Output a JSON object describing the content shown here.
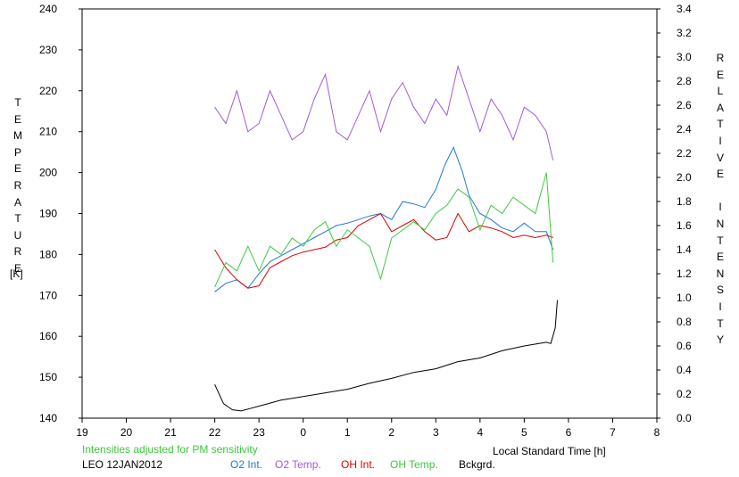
{
  "chart_data": {
    "type": "line",
    "title": "",
    "station": "LEO 12JAN2012",
    "note": "Intensities adjusted for PM sensitivity",
    "xlabel": "Local Standard Time [h]",
    "ylabel_left": "TEMPERATURE",
    "ylabel_left_unit": "[K]",
    "ylabel_right": "RELATIVE INTENSITY",
    "xlim": [
      19,
      32
    ],
    "x_tick_labels": [
      "19",
      "20",
      "21",
      "22",
      "23",
      "0",
      "1",
      "2",
      "3",
      "4",
      "5",
      "6",
      "7",
      "8"
    ],
    "ylim_left": [
      140,
      240
    ],
    "y_left_ticks": [
      "140",
      "150",
      "160",
      "170",
      "180",
      "190",
      "200",
      "210",
      "220",
      "230",
      "240"
    ],
    "ylim_right": [
      0.0,
      3.4
    ],
    "y_right_ticks": [
      "0.0",
      "0.2",
      "0.4",
      "0.6",
      "0.8",
      "1.0",
      "1.2",
      "1.4",
      "1.6",
      "1.8",
      "2.0",
      "2.2",
      "2.4",
      "2.6",
      "2.8",
      "3.0",
      "3.2",
      "3.4"
    ],
    "grid": false,
    "legend_position": "bottom",
    "series": [
      {
        "name": "O2 Int.",
        "axis": "right",
        "color": "#1e78dc",
        "x": [
          22.0,
          22.25,
          22.5,
          22.75,
          23.0,
          23.25,
          23.5,
          23.75,
          24.0,
          24.25,
          24.5,
          24.75,
          25.0,
          25.25,
          25.5,
          25.75,
          26.0,
          26.25,
          26.5,
          26.75,
          27.0,
          27.2,
          27.4,
          27.6,
          27.75,
          28.0,
          28.25,
          28.5,
          28.75,
          29.0,
          29.25,
          29.5,
          29.65
        ],
        "y": [
          1.05,
          1.12,
          1.15,
          1.08,
          1.2,
          1.3,
          1.35,
          1.4,
          1.45,
          1.5,
          1.55,
          1.6,
          1.62,
          1.65,
          1.68,
          1.7,
          1.65,
          1.8,
          1.78,
          1.75,
          1.9,
          2.1,
          2.25,
          2.05,
          1.85,
          1.7,
          1.65,
          1.58,
          1.55,
          1.62,
          1.55,
          1.55,
          1.4
        ]
      },
      {
        "name": "O2 Temp.",
        "axis": "left",
        "color": "#a05adc",
        "x": [
          22.0,
          22.25,
          22.5,
          22.75,
          23.0,
          23.25,
          23.5,
          23.75,
          24.0,
          24.25,
          24.5,
          24.75,
          25.0,
          25.25,
          25.5,
          25.75,
          26.0,
          26.25,
          26.5,
          26.75,
          27.0,
          27.25,
          27.5,
          27.75,
          28.0,
          28.25,
          28.5,
          28.75,
          29.0,
          29.25,
          29.5,
          29.65
        ],
        "y": [
          216,
          212,
          220,
          210,
          212,
          220,
          214,
          208,
          210,
          218,
          224,
          210,
          208,
          214,
          220,
          210,
          218,
          222,
          216,
          212,
          218,
          214,
          226,
          218,
          210,
          218,
          214,
          208,
          216,
          214,
          210,
          203
        ]
      },
      {
        "name": "OH Int.",
        "axis": "right",
        "color": "#dc0000",
        "x": [
          22.0,
          22.25,
          22.5,
          22.75,
          23.0,
          23.25,
          23.5,
          23.75,
          24.0,
          24.25,
          24.5,
          24.75,
          25.0,
          25.25,
          25.5,
          25.75,
          26.0,
          26.25,
          26.5,
          26.75,
          27.0,
          27.25,
          27.5,
          27.75,
          28.0,
          28.25,
          28.5,
          28.75,
          29.0,
          29.25,
          29.5,
          29.65
        ],
        "y": [
          1.4,
          1.25,
          1.15,
          1.08,
          1.1,
          1.25,
          1.3,
          1.35,
          1.38,
          1.4,
          1.42,
          1.48,
          1.5,
          1.6,
          1.65,
          1.7,
          1.55,
          1.6,
          1.65,
          1.55,
          1.48,
          1.5,
          1.7,
          1.55,
          1.6,
          1.58,
          1.55,
          1.5,
          1.52,
          1.5,
          1.52,
          1.5
        ]
      },
      {
        "name": "OH Temp.",
        "axis": "left",
        "color": "#40c840",
        "x": [
          22.0,
          22.25,
          22.5,
          22.75,
          23.0,
          23.25,
          23.5,
          23.75,
          24.0,
          24.25,
          24.5,
          24.75,
          25.0,
          25.25,
          25.5,
          25.75,
          26.0,
          26.25,
          26.5,
          26.75,
          27.0,
          27.25,
          27.5,
          27.75,
          28.0,
          28.25,
          28.5,
          28.75,
          29.0,
          29.25,
          29.5,
          29.65
        ],
        "y": [
          172,
          178,
          176,
          182,
          176,
          182,
          180,
          184,
          182,
          186,
          188,
          182,
          186,
          184,
          182,
          174,
          184,
          186,
          188,
          186,
          190,
          192,
          196,
          194,
          186,
          192,
          190,
          194,
          192,
          190,
          200,
          178
        ]
      },
      {
        "name": "Bckgrd.",
        "axis": "right",
        "color": "#000000",
        "x": [
          22.0,
          22.2,
          22.4,
          22.6,
          22.8,
          23.0,
          23.5,
          24.0,
          24.5,
          25.0,
          25.5,
          26.0,
          26.5,
          27.0,
          27.5,
          28.0,
          28.5,
          29.0,
          29.5,
          29.6,
          29.7,
          29.75
        ],
        "y": [
          0.28,
          0.12,
          0.07,
          0.06,
          0.08,
          0.1,
          0.15,
          0.18,
          0.21,
          0.24,
          0.29,
          0.33,
          0.38,
          0.41,
          0.47,
          0.5,
          0.56,
          0.6,
          0.63,
          0.62,
          0.75,
          0.98
        ]
      }
    ]
  }
}
